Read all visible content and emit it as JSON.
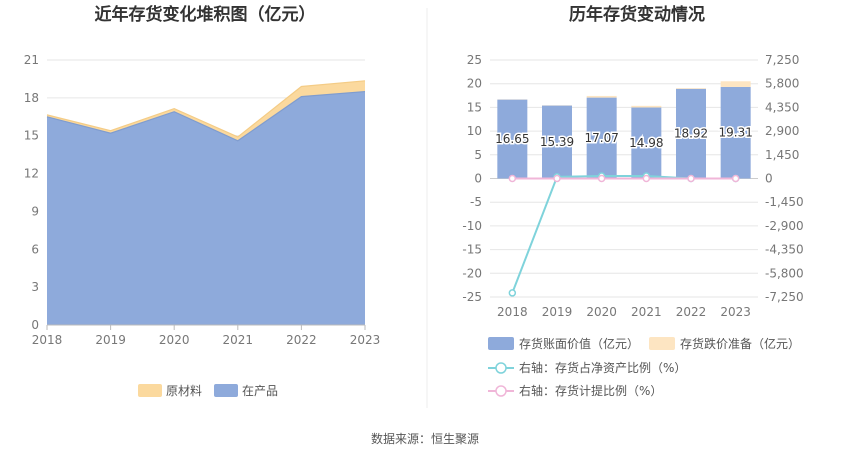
{
  "source_text": "数据来源：恒生聚源",
  "chart_data": [
    {
      "type": "area",
      "title": "近年存货变化堆积图（亿元）",
      "x": [
        "2018",
        "2019",
        "2020",
        "2021",
        "2022",
        "2023"
      ],
      "ylim": [
        0,
        21
      ],
      "yticks": [
        0,
        3,
        6,
        9,
        12,
        15,
        18,
        21
      ],
      "stacked": true,
      "grid": true,
      "legend_position": "bottom",
      "series": [
        {
          "name": "在产品",
          "color": "#8eaadb",
          "values": [
            16.5,
            15.2,
            16.9,
            14.6,
            18.1,
            18.5
          ]
        },
        {
          "name": "原材料",
          "color": "#fbd99e",
          "values": [
            0.15,
            0.2,
            0.25,
            0.3,
            0.8,
            0.85
          ]
        }
      ],
      "legend_order": [
        "原材料",
        "在产品"
      ]
    },
    {
      "type": "bar",
      "title": "历年存货变动情况",
      "categories": [
        "2018",
        "2019",
        "2020",
        "2021",
        "2022",
        "2023"
      ],
      "ylim": [
        -25,
        25
      ],
      "yticks": [
        25,
        20,
        15,
        10,
        5,
        0,
        -5,
        -10,
        -15,
        -20,
        -25
      ],
      "y2lim": [
        -7250,
        7250
      ],
      "y2ticks": [
        "7,250",
        "5,800",
        "4,350",
        "2,900",
        "1,450",
        "0",
        "-1,450",
        "-2,900",
        "-4,350",
        "-5,800",
        "-7,250"
      ],
      "grid": true,
      "legend_position": "bottom",
      "series": [
        {
          "name": "存货账面价值（亿元）",
          "kind": "bar",
          "color": "#8eaadb",
          "axis": "left",
          "values": [
            16.65,
            15.39,
            17.07,
            14.98,
            18.92,
            19.31
          ],
          "labels": [
            "16.65",
            "15.39",
            "17.07",
            "14.98",
            "18.92",
            "19.31"
          ]
        },
        {
          "name": "存货跌价准备（亿元）",
          "kind": "bar",
          "color": "#fde5c2",
          "axis": "left",
          "values": [
            0.05,
            0.05,
            0.35,
            0.35,
            0.15,
            1.2
          ]
        },
        {
          "name": "右轴：存货占净资产比例（%）",
          "kind": "line",
          "color": "#7fd3db",
          "axis": "right",
          "values": [
            -7000,
            100,
            150,
            150,
            0,
            0
          ]
        },
        {
          "name": "右轴：存货计提比例（%）",
          "kind": "line",
          "color": "#f0b6d8",
          "axis": "right",
          "values": [
            0,
            0,
            0,
            0,
            0,
            0
          ]
        }
      ]
    }
  ]
}
